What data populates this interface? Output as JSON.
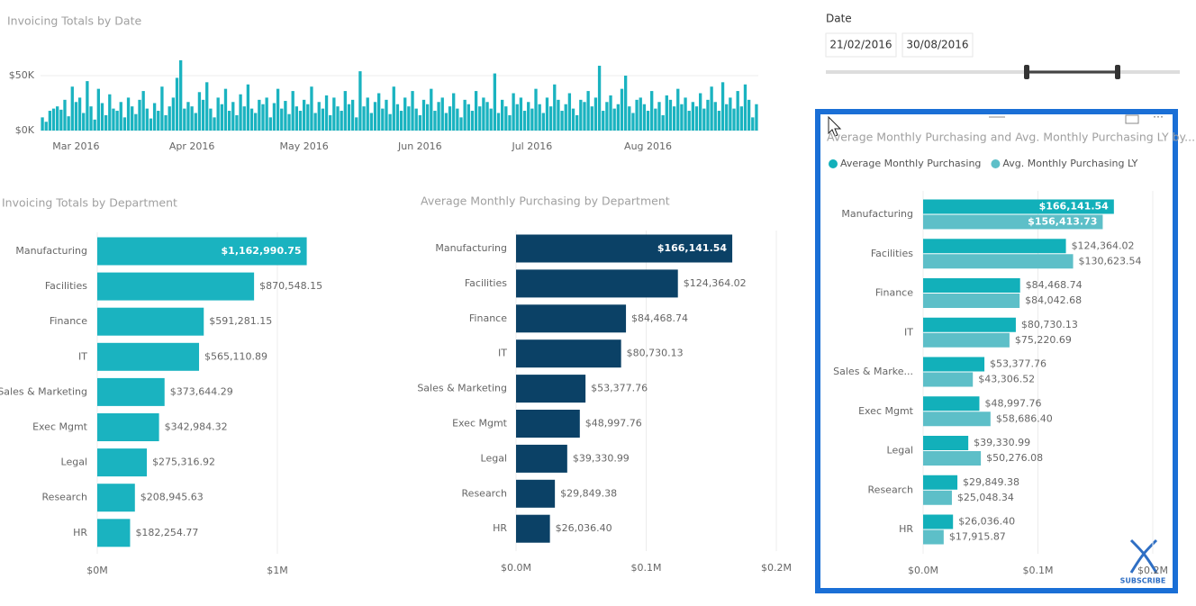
{
  "slicer": {
    "label": "Date",
    "start": "21/02/2016",
    "end": "30/08/2016"
  },
  "badge": "SUBSCRIBE",
  "chart_data": [
    {
      "type": "bar",
      "title": "Invoicing Totals by Date",
      "color": "#1ab3c0",
      "categories": [
        null,
        null,
        null,
        null,
        null,
        null,
        null,
        null,
        null,
        "Mar 2016",
        null,
        null,
        null,
        null,
        null,
        null,
        null,
        null,
        null,
        null,
        null,
        null,
        null,
        null,
        null,
        null,
        null,
        null,
        null,
        null,
        null,
        null,
        null,
        null,
        null,
        null,
        null,
        null,
        null,
        null,
        "Apr 2016",
        null,
        null,
        null,
        null,
        null,
        null,
        null,
        null,
        null,
        null,
        null,
        null,
        null,
        null,
        null,
        null,
        null,
        null,
        null,
        null,
        null,
        null,
        null,
        null,
        null,
        null,
        null,
        null,
        null,
        "May 2016",
        null,
        null,
        null,
        null,
        null,
        null,
        null,
        null,
        null,
        null,
        null,
        null,
        null,
        null,
        null,
        null,
        null,
        null,
        null,
        null,
        null,
        null,
        null,
        null,
        null,
        null,
        null,
        null,
        null,
        null,
        "Jun 2016",
        null,
        null,
        null,
        null,
        null,
        null,
        null,
        null,
        null,
        null,
        null,
        null,
        null,
        null,
        null,
        null,
        null,
        null,
        null,
        null,
        null,
        null,
        null,
        null,
        null,
        null,
        null,
        null,
        null,
        "Jul 2016",
        null,
        null,
        null,
        null,
        null,
        null,
        null,
        null,
        null,
        null,
        null,
        null,
        null,
        null,
        null,
        null,
        null,
        null,
        null,
        null,
        null,
        null,
        null,
        null,
        null,
        null,
        null,
        null,
        null,
        null,
        "Aug 2016",
        null,
        null,
        null,
        null,
        null,
        null,
        null,
        null,
        null,
        null,
        null,
        null,
        null,
        null,
        null,
        null,
        null,
        null,
        null,
        null,
        null,
        null,
        null,
        null,
        null,
        null,
        null,
        null,
        null
      ],
      "values": [
        12,
        8,
        18,
        20,
        22,
        19,
        28,
        13,
        40,
        26,
        30,
        16,
        45,
        22,
        10,
        38,
        25,
        14,
        33,
        20,
        18,
        26,
        12,
        30,
        22,
        15,
        28,
        36,
        20,
        11,
        25,
        18,
        40,
        14,
        22,
        30,
        48,
        64,
        20,
        26,
        22,
        16,
        35,
        28,
        44,
        20,
        12,
        30,
        24,
        38,
        18,
        26,
        14,
        33,
        22,
        42,
        20,
        16,
        28,
        24,
        30,
        12,
        25,
        38,
        20,
        27,
        15,
        36,
        22,
        18,
        28,
        24,
        40,
        16,
        26,
        20,
        32,
        14,
        30,
        22,
        18,
        36,
        24,
        28,
        12,
        54,
        22,
        30,
        16,
        26,
        34,
        20,
        28,
        15,
        40,
        24,
        18,
        30,
        22,
        36,
        20,
        14,
        28,
        24,
        38,
        18,
        26,
        30,
        16,
        22,
        34,
        20,
        12,
        28,
        24,
        18,
        36,
        22,
        30,
        26,
        20,
        52,
        16,
        28,
        22,
        14,
        34,
        24,
        30,
        18,
        26,
        20,
        38,
        24,
        16,
        30,
        22,
        42,
        28,
        18,
        24,
        34,
        20,
        14,
        28,
        26,
        36,
        22,
        30,
        59,
        18,
        26,
        32,
        20,
        24,
        38,
        50,
        22,
        16,
        28,
        30,
        24,
        18,
        36,
        20,
        26,
        14,
        32,
        28,
        22,
        38,
        24,
        30,
        18,
        26,
        22,
        34,
        20,
        28,
        40,
        26,
        18,
        44,
        24,
        30,
        20,
        36,
        22,
        42,
        28,
        12,
        24
      ],
      "ylim": [
        0,
        65
      ],
      "yticks": [
        {
          "value": 0,
          "label": "$0K"
        },
        {
          "value": 50,
          "label": "$50K"
        }
      ],
      "grid": true
    },
    {
      "type": "bar",
      "horizontal": true,
      "title": "Invoicing Totals by Department",
      "color": "#1ab3c0",
      "categories": [
        "Manufacturing",
        "Facilities",
        "Finance",
        "IT",
        "Sales & Marketing",
        "Exec Mgmt",
        "Legal",
        "Research",
        "HR"
      ],
      "values": [
        1162990.75,
        870548.15,
        591281.15,
        565110.89,
        373644.29,
        342984.32,
        275316.92,
        208945.63,
        182254.77
      ],
      "value_labels": [
        "$1,162,990.75",
        "$870,548.15",
        "$591,281.15",
        "$565,110.89",
        "$373,644.29",
        "$342,984.32",
        "$275,316.92",
        "$208,945.63",
        "$182,254.77"
      ],
      "xlim": [
        0,
        1400000
      ],
      "xticks": [
        {
          "value": 0,
          "label": "$0M"
        },
        {
          "value": 1000000,
          "label": "$1M"
        }
      ],
      "grid": true
    },
    {
      "type": "bar",
      "horizontal": true,
      "title": "Average Monthly Purchasing by Department",
      "color": "#0b4166",
      "categories": [
        "Manufacturing",
        "Facilities",
        "Finance",
        "IT",
        "Sales & Marketing",
        "Exec Mgmt",
        "Legal",
        "Research",
        "HR"
      ],
      "values": [
        166141.54,
        124364.02,
        84468.74,
        80730.13,
        53377.76,
        48997.76,
        39330.99,
        29849.38,
        26036.4
      ],
      "value_labels": [
        "$166,141.54",
        "$124,364.02",
        "$84,468.74",
        "$80,730.13",
        "$53,377.76",
        "$48,997.76",
        "$39,330.99",
        "$29,849.38",
        "$26,036.40"
      ],
      "xlim": [
        0,
        200000
      ],
      "xticks": [
        {
          "value": 0,
          "label": "$0.0M"
        },
        {
          "value": 100000,
          "label": "$0.1M"
        },
        {
          "value": 200000,
          "label": "$0.2M"
        }
      ],
      "grid": true
    },
    {
      "type": "bar",
      "horizontal": true,
      "title": "Average Monthly Purchasing and Avg. Monthly Purchasing LY by...",
      "legend": "top-left",
      "categories": [
        "Manufacturing",
        "Facilities",
        "Finance",
        "IT",
        "Sales & Marke...",
        "Exec Mgmt",
        "Legal",
        "Research",
        "HR"
      ],
      "series": [
        {
          "name": "Average Monthly Purchasing",
          "color": "#12b0ba",
          "values": [
            166141.54,
            124364.02,
            84468.74,
            80730.13,
            53377.76,
            48997.76,
            39330.99,
            29849.38,
            26036.4
          ],
          "value_labels": [
            "$166,141.54",
            "$124,364.02",
            "$84,468.74",
            "$80,730.13",
            "$53,377.76",
            "$48,997.76",
            "$39,330.99",
            "$29,849.38",
            "$26,036.40"
          ]
        },
        {
          "name": "Avg. Monthly Purchasing LY",
          "color": "#5dbfc8",
          "values": [
            156413.73,
            130623.54,
            84042.68,
            75220.69,
            43306.52,
            58686.4,
            50276.08,
            25048.34,
            17915.87
          ],
          "value_labels": [
            "$156,413.73",
            "$130,623.54",
            "$84,042.68",
            "$75,220.69",
            "$43,306.52",
            "$58,686.40",
            "$50,276.08",
            "$25,048.34",
            "$17,915.87"
          ]
        }
      ],
      "xlim": [
        0,
        200000
      ],
      "xticks": [
        {
          "value": 0,
          "label": "$0.0M"
        },
        {
          "value": 100000,
          "label": "$0.1M"
        },
        {
          "value": 200000,
          "label": "$0.2M"
        }
      ],
      "grid": true
    }
  ]
}
